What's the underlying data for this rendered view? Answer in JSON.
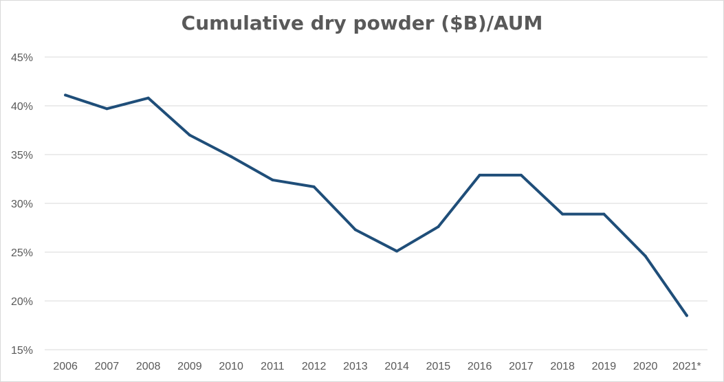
{
  "chart_data": {
    "type": "line",
    "title": "Cumulative dry powder ($B)/AUM",
    "xlabel": "",
    "ylabel": "",
    "categories": [
      "2006",
      "2007",
      "2008",
      "2009",
      "2010",
      "2011",
      "2012",
      "2013",
      "2014",
      "2015",
      "2016",
      "2017",
      "2018",
      "2019",
      "2020",
      "2021*"
    ],
    "series": [
      {
        "values": [
          41.1,
          39.7,
          40.8,
          37.0,
          34.8,
          32.4,
          31.7,
          27.3,
          25.1,
          27.6,
          32.9,
          32.9,
          28.9,
          28.9,
          24.6,
          18.5
        ]
      }
    ],
    "ylim": [
      15,
      45
    ],
    "yticks": [
      "15%",
      "20%",
      "25%",
      "30%",
      "35%",
      "40%",
      "45%"
    ],
    "grid": true,
    "legend": "none",
    "line_color": "#1f4e79",
    "grid_color": "#d9d9d9"
  }
}
